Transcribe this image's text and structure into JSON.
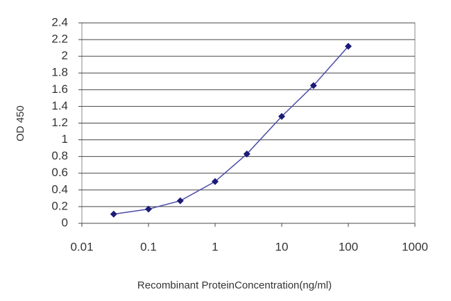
{
  "chart_data": {
    "type": "line",
    "x_label": "Recombinant ProteinConcentration(ng/ml)",
    "y_label": "OD 450",
    "x": [
      0.03,
      0.1,
      0.3,
      1,
      3,
      10,
      30,
      100
    ],
    "series": [
      {
        "name": "OD 450",
        "color": "#1c1c78",
        "values": [
          0.11,
          0.17,
          0.27,
          0.5,
          0.83,
          1.28,
          1.65,
          2.12
        ]
      }
    ],
    "xscale": "log",
    "xlim": [
      0.01,
      1000
    ],
    "xticks": [
      0.01,
      0.1,
      1,
      10,
      100,
      1000
    ],
    "ylim": [
      0,
      2.4
    ],
    "yticks": [
      0,
      0.2,
      0.4,
      0.6,
      0.8,
      1,
      1.2,
      1.4,
      1.6,
      1.8,
      2,
      2.2,
      2.4
    ],
    "grid": true
  }
}
